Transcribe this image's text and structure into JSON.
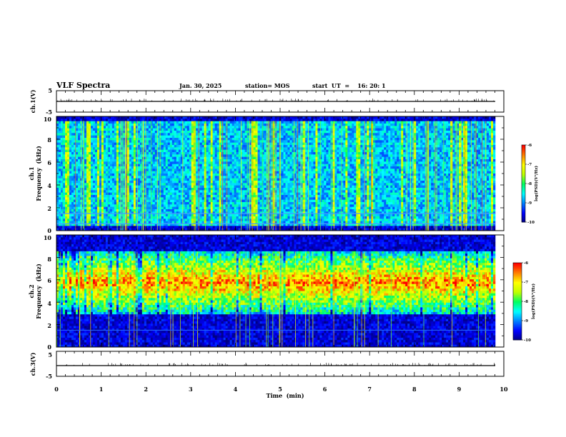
{
  "header": {
    "title": "VLF Spectra",
    "date": "Jan. 30, 2025",
    "station": "station= MOS",
    "start": "start  UT  =    16: 20: 1"
  },
  "chart_data": [
    {
      "type": "line",
      "name": "ch1-waveform",
      "ylabel": "ch.1(V)",
      "ylim": [
        -5,
        5
      ],
      "yticks": [
        "5",
        "-5"
      ],
      "x": [
        0,
        10
      ],
      "y": [
        0,
        0
      ]
    },
    {
      "type": "heatmap",
      "name": "ch1-spectrogram",
      "ylabel_line1": "ch.1",
      "ylabel_line2": "Frequency  (kHz)",
      "ylim": [
        0,
        10
      ],
      "yticks": [
        "0",
        "2",
        "4",
        "6",
        "8",
        "10"
      ],
      "xlim": [
        0,
        10
      ],
      "colorbar": {
        "label": "log(PSD)(V²/Hz)",
        "range": [
          -10,
          -6
        ],
        "ticks": [
          "-6",
          "-7",
          "-8",
          "-9",
          "-10"
        ]
      },
      "band_khz": [
        0.5,
        9.6
      ],
      "intensity_level": "low",
      "line_khz": [
        0.6,
        1.5
      ]
    },
    {
      "type": "heatmap",
      "name": "ch2-spectrogram",
      "ylabel_line1": "ch.2",
      "ylabel_line2": "Frequency  (kHz)",
      "ylim": [
        0,
        10
      ],
      "yticks": [
        "0",
        "2",
        "4",
        "6",
        "8",
        "10"
      ],
      "xlim": [
        0,
        10
      ],
      "colorbar": {
        "label": "log(PSD)(V²/Hz)",
        "range": [
          -10,
          -6
        ],
        "ticks": [
          "-6",
          "-7",
          "-8",
          "-9",
          "-10"
        ]
      },
      "band_khz": [
        3,
        8.5
      ],
      "peak_khz": [
        4,
        7.5
      ],
      "intensity_level": "high",
      "line_khz": [
        1.5
      ]
    },
    {
      "type": "line",
      "name": "ch3-waveform",
      "ylabel": "ch.3(V)",
      "ylim": [
        -5,
        5
      ],
      "yticks": [
        "5",
        "-5"
      ],
      "x": [
        0,
        10
      ],
      "y": [
        0,
        0
      ]
    }
  ],
  "xaxis": {
    "label": "Time  (min)",
    "range": [
      0,
      10
    ],
    "ticks": [
      "0",
      "1",
      "2",
      "3",
      "4",
      "5",
      "6",
      "7",
      "8",
      "9",
      "10"
    ]
  },
  "colors": {
    "colormap": [
      "#000080",
      "#0000ff",
      "#0080ff",
      "#00ffff",
      "#00ff60",
      "#c0ff00",
      "#ffff00",
      "#ff8000",
      "#ff0000",
      "#ffffff"
    ],
    "line": "#000000"
  }
}
